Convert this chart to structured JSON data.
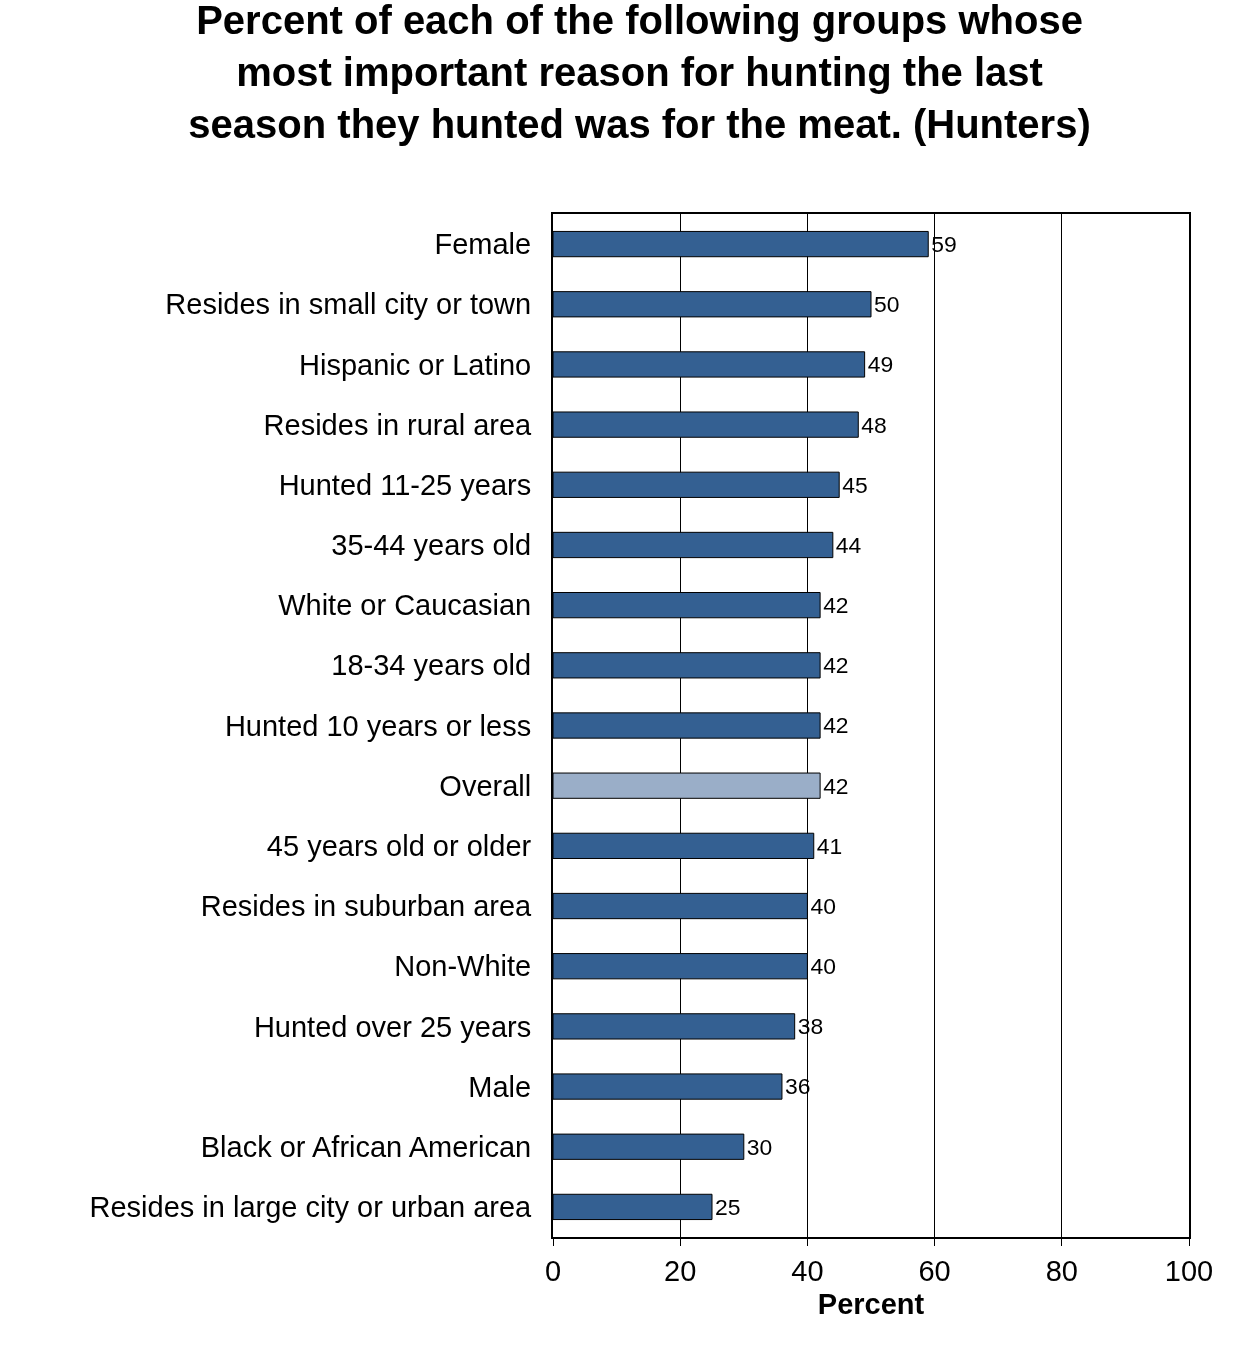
{
  "chart_data": {
    "type": "bar",
    "orientation": "horizontal",
    "title": "Percent of each of the following groups whose\nmost important reason for hunting the last\nseason they hunted was for the meat. (Hunters)",
    "xlabel": "Percent",
    "categories": [
      "Female",
      "Resides in small city or town",
      "Hispanic or Latino",
      "Resides in rural area",
      "Hunted 11-25 years",
      "35-44 years old",
      "White or Caucasian",
      "18-34 years old",
      "Hunted 10 years or less",
      "Overall",
      "45 years old or older",
      "Resides in suburban area",
      "Non-White",
      "Hunted over 25 years",
      "Male",
      "Black or African American",
      "Resides in large city or urban area"
    ],
    "values": [
      59,
      50,
      49,
      48,
      45,
      44,
      42,
      42,
      42,
      42,
      41,
      40,
      40,
      38,
      36,
      30,
      25
    ],
    "colors": [
      "#346092",
      "#346092",
      "#346092",
      "#346092",
      "#346092",
      "#346092",
      "#346092",
      "#346092",
      "#346092",
      "#9aaec8",
      "#346092",
      "#346092",
      "#346092",
      "#346092",
      "#346092",
      "#346092",
      "#346092"
    ],
    "xlim": [
      0,
      100
    ],
    "xticks": [
      0,
      20,
      40,
      60,
      80,
      100
    ],
    "grid": "x",
    "legend": false,
    "data_labels": true
  }
}
